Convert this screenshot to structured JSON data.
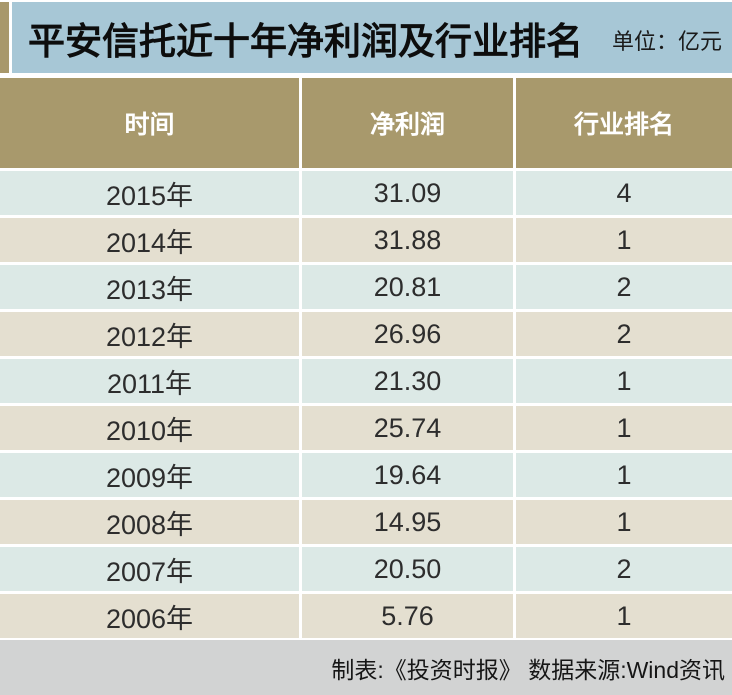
{
  "title": {
    "text": "平安信托近十年净利润及行业排名",
    "unit": "单位：亿元"
  },
  "table": {
    "columns": [
      "时间",
      "净利润",
      "行业排名"
    ],
    "rows": [
      {
        "year": "2015年",
        "profit": "31.09",
        "rank": "4"
      },
      {
        "year": "2014年",
        "profit": "31.88",
        "rank": "1"
      },
      {
        "year": "2013年",
        "profit": "20.81",
        "rank": "2"
      },
      {
        "year": "2012年",
        "profit": "26.96",
        "rank": "2"
      },
      {
        "year": "2011年",
        "profit": "21.30",
        "rank": "1"
      },
      {
        "year": "2010年",
        "profit": "25.74",
        "rank": "1"
      },
      {
        "year": "2009年",
        "profit": "19.64",
        "rank": "1"
      },
      {
        "year": "2008年",
        "profit": "14.95",
        "rank": "1"
      },
      {
        "year": "2007年",
        "profit": "20.50",
        "rank": "2"
      },
      {
        "year": "2006年",
        "profit": "5.76",
        "rank": "1"
      }
    ]
  },
  "footer": {
    "text": "制表:《投资时报》  数据来源:Wind资讯"
  },
  "colors": {
    "title_bg": "#a7c7d6",
    "accent_strip": "#a8986b",
    "header_bg": "#a8996c",
    "row_light": "#dce9e6",
    "row_beige": "#e4dfd0",
    "footer_bg": "#d2d3d3"
  },
  "chart_data": {
    "type": "table",
    "title": "平安信托近十年净利润及行业排名",
    "unit": "亿元",
    "columns": [
      "时间",
      "净利润",
      "行业排名"
    ],
    "rows": [
      [
        "2015年",
        31.09,
        4
      ],
      [
        "2014年",
        31.88,
        1
      ],
      [
        "2013年",
        20.81,
        2
      ],
      [
        "2012年",
        26.96,
        2
      ],
      [
        "2011年",
        21.3,
        1
      ],
      [
        "2010年",
        25.74,
        1
      ],
      [
        "2009年",
        19.64,
        1
      ],
      [
        "2008年",
        14.95,
        1
      ],
      [
        "2007年",
        20.5,
        2
      ],
      [
        "2006年",
        5.76,
        1
      ]
    ],
    "credit": "制表:《投资时报》",
    "source": "数据来源:Wind资讯"
  }
}
